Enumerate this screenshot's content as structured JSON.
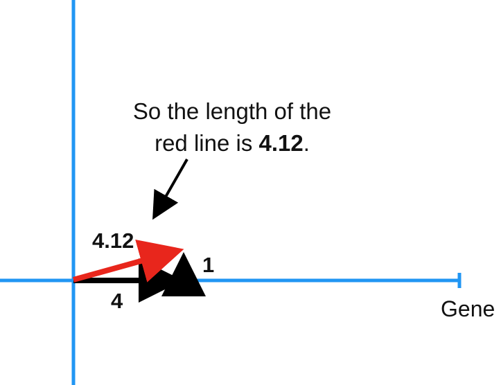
{
  "callout": {
    "line1": "So the length of the",
    "line2_prefix": "red line is ",
    "line2_value": "4.12",
    "line2_suffix": "."
  },
  "labels": {
    "hypotenuse": "4.12",
    "horizontal": "4",
    "vertical": "1"
  },
  "x_axis": {
    "label": "Gene"
  },
  "colors": {
    "axis": "#2196f3",
    "hypotenuse": "#e8261c",
    "legs": "#000000",
    "text": "#111111"
  }
}
